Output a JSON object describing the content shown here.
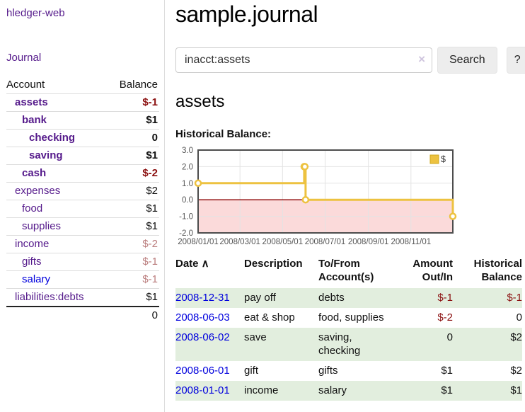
{
  "app": {
    "title": "hledger-web",
    "nav_journal": "Journal"
  },
  "colors": {
    "visited_link_purple": "#551a8b",
    "unvisited_link_blue": "#0000dd",
    "negative_dark_red": "#8b1010",
    "negative_light_rose": "#bb7e7e",
    "shaded_row_green": "#e2eede",
    "series_gold": "#edc240"
  },
  "sidebar": {
    "header": {
      "account": "Account",
      "balance": "Balance"
    },
    "accounts": [
      {
        "name": "assets",
        "depth": 1,
        "balance": "$-1",
        "in_filter": true,
        "balance_color": "negative",
        "link_state": "visited"
      },
      {
        "name": "bank",
        "depth": 2,
        "balance": "$1",
        "in_filter": true,
        "balance_color": "normal",
        "link_state": "visited"
      },
      {
        "name": "checking",
        "depth": 3,
        "balance": "0",
        "in_filter": true,
        "balance_color": "normal",
        "link_state": "visited"
      },
      {
        "name": "saving",
        "depth": 3,
        "balance": "$1",
        "in_filter": true,
        "balance_color": "normal",
        "link_state": "visited"
      },
      {
        "name": "cash",
        "depth": 2,
        "balance": "$-2",
        "in_filter": true,
        "balance_color": "negative",
        "link_state": "visited"
      },
      {
        "name": "expenses",
        "depth": 1,
        "balance": "$2",
        "in_filter": false,
        "balance_color": "normal",
        "link_state": "visited"
      },
      {
        "name": "food",
        "depth": 2,
        "balance": "$1",
        "in_filter": false,
        "balance_color": "normal",
        "link_state": "visited"
      },
      {
        "name": "supplies",
        "depth": 2,
        "balance": "$1",
        "in_filter": false,
        "balance_color": "normal",
        "link_state": "visited"
      },
      {
        "name": "income",
        "depth": 1,
        "balance": "$-2",
        "in_filter": false,
        "balance_color": "negative-light",
        "link_state": "visited"
      },
      {
        "name": "gifts",
        "depth": 2,
        "balance": "$-1",
        "in_filter": false,
        "balance_color": "negative-light",
        "link_state": "visited"
      },
      {
        "name": "salary",
        "depth": 2,
        "balance": "$-1",
        "in_filter": false,
        "balance_color": "negative-light",
        "link_state": "unvisited"
      },
      {
        "name": "liabilities:debts",
        "depth": 1,
        "balance": "$1",
        "in_filter": false,
        "balance_color": "normal",
        "link_state": "visited"
      }
    ],
    "total": "0"
  },
  "header": {
    "title": "sample.journal"
  },
  "search": {
    "value": "inacct:assets",
    "clear_icon": "×",
    "button": "Search",
    "help_button": "?"
  },
  "account_page": {
    "title": "assets",
    "chart_label": "Historical Balance:"
  },
  "chart_data": {
    "type": "line",
    "style": "step-with-markers",
    "title": "Historical Balance:",
    "series": [
      {
        "name": "$",
        "color": "#edc240",
        "points": [
          [
            "2008-01-01",
            1.0
          ],
          [
            "2008-06-01",
            2.0
          ],
          [
            "2008-06-02",
            2.0
          ],
          [
            "2008-06-03",
            0.0
          ],
          [
            "2008-12-31",
            -1.0
          ]
        ]
      }
    ],
    "x_range": [
      "2008-01-01",
      "2008-12-31"
    ],
    "x_ticks": [
      "2008/01/01",
      "2008/03/01",
      "2008/05/01",
      "2008/07/01",
      "2008/09/01",
      "2008/11/01"
    ],
    "y_ticks": [
      3.0,
      2.0,
      1.0,
      0.0,
      -1.0,
      -2.0
    ],
    "ylim": [
      -2.0,
      3.0
    ],
    "grid": true,
    "legend": {
      "label": "$",
      "position": "top-right"
    },
    "negative_region_color": "#fbdada",
    "zero_line_color": "#8b0000"
  },
  "register": {
    "sort_icon": "∧",
    "columns": [
      {
        "label": "Date",
        "align": "left",
        "sortable": true
      },
      {
        "label": "Description",
        "align": "left"
      },
      {
        "label": "To/From Account(s)",
        "align": "left"
      },
      {
        "label": "Amount Out/In",
        "align": "right"
      },
      {
        "label": "Historical Balance",
        "align": "right"
      }
    ],
    "rows": [
      {
        "date": "2008-12-31",
        "description": "pay off",
        "accounts": "debts",
        "amount": "$-1",
        "amount_negative": true,
        "balance": "$-1",
        "balance_negative": true,
        "shaded": true
      },
      {
        "date": "2008-06-03",
        "description": "eat & shop",
        "accounts": "food, supplies",
        "amount": "$-2",
        "amount_negative": true,
        "balance": "0",
        "balance_negative": false,
        "shaded": false
      },
      {
        "date": "2008-06-02",
        "description": "save",
        "accounts": "saving, checking",
        "amount": "0",
        "amount_negative": false,
        "balance": "$2",
        "balance_negative": false,
        "shaded": true
      },
      {
        "date": "2008-06-01",
        "description": "gift",
        "accounts": "gifts",
        "amount": "$1",
        "amount_negative": false,
        "balance": "$2",
        "balance_negative": false,
        "shaded": false
      },
      {
        "date": "2008-01-01",
        "description": "income",
        "accounts": "salary",
        "amount": "$1",
        "amount_negative": false,
        "balance": "$1",
        "balance_negative": false,
        "shaded": true
      }
    ]
  }
}
